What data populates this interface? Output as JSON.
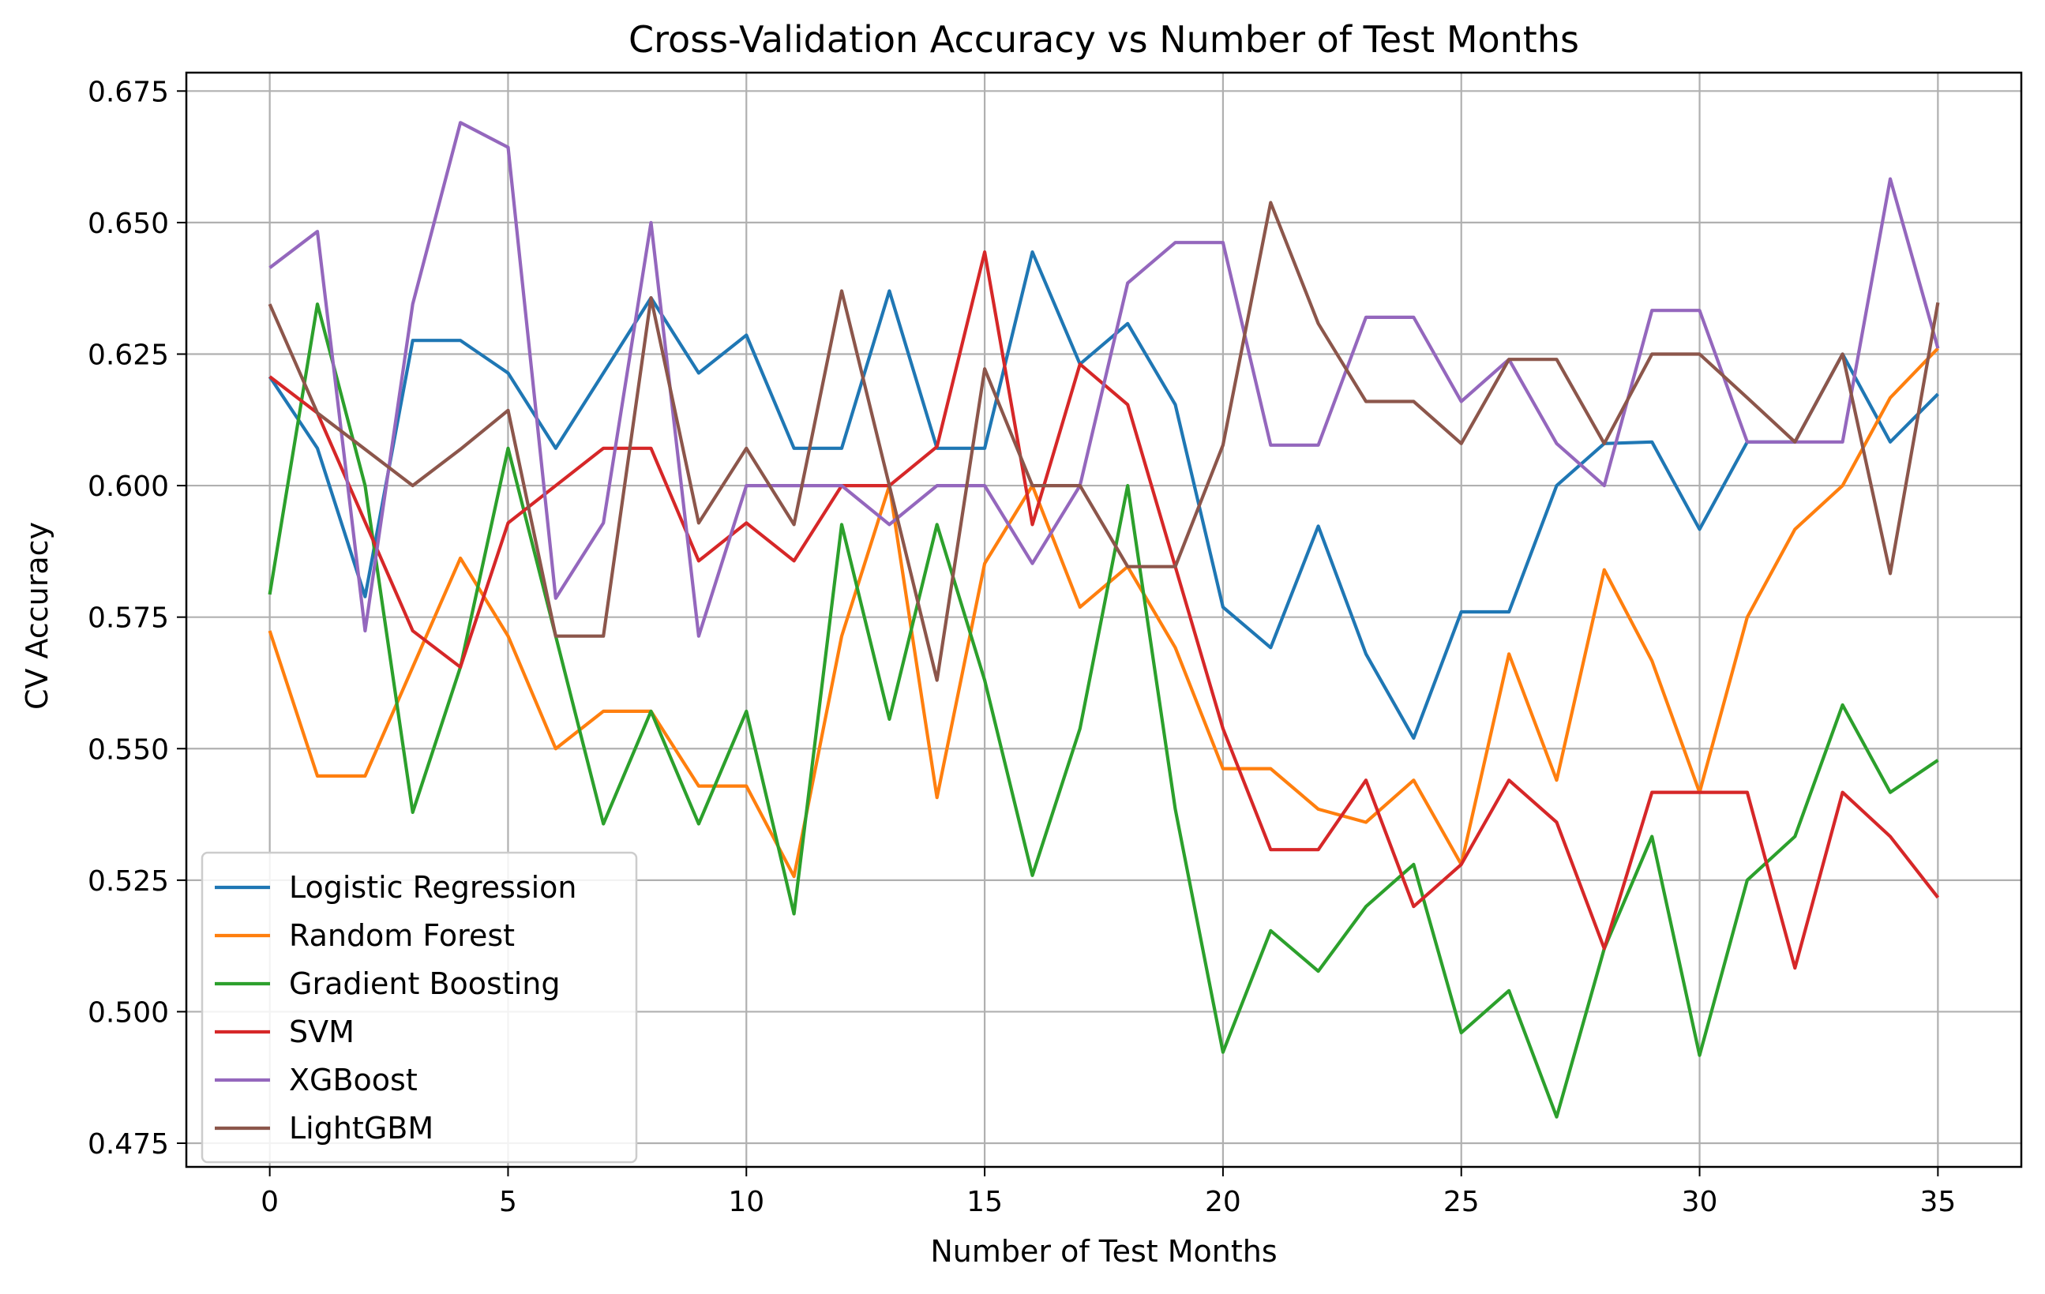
{
  "chart_data": {
    "type": "line",
    "title": "Cross-Validation Accuracy vs Number of Test Months",
    "xlabel": "Number of Test Months",
    "ylabel": "CV Accuracy",
    "xlim": [
      -1.75,
      36.75
    ],
    "ylim": [
      0.4705,
      0.6785
    ],
    "xticks": [
      0,
      5,
      10,
      15,
      20,
      25,
      30,
      35
    ],
    "yticks": [
      0.475,
      0.5,
      0.525,
      0.55,
      0.575,
      0.6,
      0.625,
      0.65,
      0.675
    ],
    "ytick_labels": [
      "0.475",
      "0.500",
      "0.525",
      "0.550",
      "0.575",
      "0.600",
      "0.625",
      "0.650",
      "0.675"
    ],
    "grid": true,
    "legend_position": "lower-left",
    "x": [
      0,
      1,
      2,
      3,
      4,
      5,
      6,
      7,
      8,
      9,
      10,
      11,
      12,
      13,
      14,
      15,
      16,
      17,
      18,
      19,
      20,
      21,
      22,
      23,
      24,
      25,
      26,
      27,
      28,
      29,
      30,
      31,
      32,
      33,
      34,
      35
    ],
    "series": [
      {
        "name": "Logistic Regression",
        "color": "#1f77b4",
        "values": [
          0.6207,
          0.6071,
          0.5789,
          0.6276,
          0.6276,
          0.6214,
          0.6071,
          0.6214,
          0.6357,
          0.6214,
          0.6286,
          0.6071,
          0.6071,
          0.637,
          0.6071,
          0.6071,
          0.6444,
          0.6231,
          0.6308,
          0.6154,
          0.5769,
          0.5692,
          0.5923,
          0.568,
          0.552,
          0.576,
          0.576,
          0.6,
          0.608,
          0.6083,
          0.5917,
          0.6083,
          0.6083,
          0.625,
          0.6083,
          0.6174
        ]
      },
      {
        "name": "Random Forest",
        "color": "#ff7f0e",
        "values": [
          0.5724,
          0.5448,
          0.5448,
          0.5655,
          0.5862,
          0.5714,
          0.55,
          0.5571,
          0.5571,
          0.5429,
          0.5429,
          0.5257,
          0.5714,
          0.6,
          0.5407,
          0.5852,
          0.6,
          0.5769,
          0.5846,
          0.5692,
          0.5462,
          0.5462,
          0.5385,
          0.536,
          0.544,
          0.528,
          0.568,
          0.544,
          0.584,
          0.5667,
          0.5417,
          0.575,
          0.5917,
          0.6,
          0.6167,
          0.6261
        ]
      },
      {
        "name": "Gradient Boosting",
        "color": "#2ca02c",
        "values": [
          0.5793,
          0.6345,
          0.6,
          0.5379,
          0.5655,
          0.6071,
          0.5714,
          0.5357,
          0.5571,
          0.5357,
          0.5571,
          0.5186,
          0.5926,
          0.5556,
          0.5926,
          0.563,
          0.5259,
          0.5538,
          0.6,
          0.5385,
          0.4923,
          0.5154,
          0.5077,
          0.52,
          0.528,
          0.496,
          0.504,
          0.48,
          0.512,
          0.5333,
          0.4917,
          0.525,
          0.5333,
          0.5583,
          0.5417,
          0.5478
        ]
      },
      {
        "name": "SVM",
        "color": "#d62728",
        "values": [
          0.6207,
          0.6138,
          0.5931,
          0.5724,
          0.5655,
          0.5929,
          0.6,
          0.6071,
          0.6071,
          0.5857,
          0.5929,
          0.5857,
          0.6,
          0.6,
          0.6074,
          0.6444,
          0.5926,
          0.6231,
          0.6154,
          0.5846,
          0.5538,
          0.5308,
          0.5308,
          0.544,
          0.52,
          0.528,
          0.544,
          0.536,
          0.512,
          0.5417,
          0.5417,
          0.5417,
          0.5083,
          0.5417,
          0.5333,
          0.5217
        ]
      },
      {
        "name": "XGBoost",
        "color": "#9467bd",
        "values": [
          0.6414,
          0.6483,
          0.5724,
          0.6345,
          0.669,
          0.6643,
          0.5786,
          0.5929,
          0.65,
          0.5714,
          0.6,
          0.6,
          0.6,
          0.5926,
          0.6,
          0.6,
          0.5852,
          0.6,
          0.6385,
          0.6462,
          0.6462,
          0.6077,
          0.6077,
          0.632,
          0.632,
          0.616,
          0.624,
          0.608,
          0.6,
          0.6333,
          0.6333,
          0.6083,
          0.6083,
          0.6083,
          0.6583,
          0.6261
        ]
      },
      {
        "name": "LightGBM",
        "color": "#8c564b",
        "values": [
          0.6345,
          0.6138,
          0.6069,
          0.6,
          0.6069,
          0.6143,
          0.5714,
          0.5714,
          0.6357,
          0.5929,
          0.6071,
          0.5926,
          0.637,
          0.6,
          0.563,
          0.6222,
          0.6,
          0.6,
          0.5846,
          0.5846,
          0.6077,
          0.6538,
          0.6308,
          0.616,
          0.616,
          0.608,
          0.624,
          0.624,
          0.608,
          0.625,
          0.625,
          0.6167,
          0.6083,
          0.625,
          0.5833,
          0.6348
        ]
      }
    ]
  }
}
